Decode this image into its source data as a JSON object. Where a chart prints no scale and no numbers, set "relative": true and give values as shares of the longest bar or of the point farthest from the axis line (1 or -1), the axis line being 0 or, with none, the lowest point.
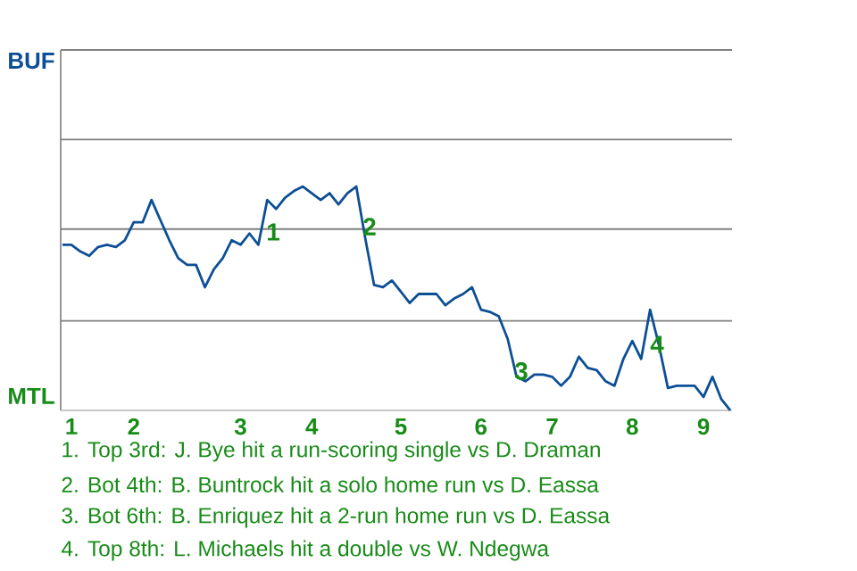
{
  "chart_data": {
    "type": "line",
    "relative": true,
    "categories": [
      null,
      "1",
      null,
      null,
      null,
      null,
      null,
      null,
      "2",
      null,
      null,
      null,
      null,
      null,
      null,
      null,
      null,
      null,
      null,
      null,
      "3",
      null,
      null,
      null,
      null,
      null,
      null,
      null,
      "4",
      null,
      null,
      null,
      null,
      null,
      null,
      null,
      null,
      null,
      "5",
      null,
      null,
      null,
      null,
      null,
      null,
      null,
      null,
      "6",
      null,
      null,
      null,
      null,
      null,
      null,
      null,
      "7",
      null,
      null,
      null,
      null,
      null,
      null,
      null,
      null,
      "8",
      null,
      null,
      null,
      null,
      null,
      null,
      null,
      "9",
      null,
      null,
      null
    ],
    "series": [
      {
        "color": "#0d4f96",
        "values": [
          0.74,
          0.74,
          0.71,
          0.69,
          0.73,
          0.74,
          0.73,
          0.76,
          0.84,
          0.84,
          0.94,
          0.85,
          0.76,
          0.68,
          0.65,
          0.65,
          0.55,
          0.63,
          0.68,
          0.76,
          0.74,
          0.79,
          0.74,
          0.94,
          0.9,
          0.95,
          0.98,
          1.0,
          0.97,
          0.94,
          0.97,
          0.92,
          0.97,
          1.0,
          0.77,
          0.56,
          0.55,
          0.58,
          0.53,
          0.48,
          0.52,
          0.52,
          0.52,
          0.47,
          0.5,
          0.52,
          0.55,
          0.45,
          0.44,
          0.42,
          0.32,
          0.15,
          0.13,
          0.16,
          0.16,
          0.15,
          0.11,
          0.15,
          0.24,
          0.19,
          0.18,
          0.13,
          0.11,
          0.23,
          0.31,
          0.23,
          0.45,
          0.29,
          0.1,
          0.11,
          0.11,
          0.11,
          0.06,
          0.15,
          0.05,
          0
        ]
      }
    ],
    "ref_lines": [
      {
        "axis": "y",
        "value": 0.4,
        "color": "#808080"
      },
      {
        "axis": "y",
        "value": 0.81,
        "color": "#808080"
      },
      {
        "axis": "y",
        "value": 1.21,
        "color": "#808080"
      },
      {
        "axis": "y",
        "value": 1.61,
        "color": "#808080"
      }
    ],
    "annotations": [
      "BUF",
      "MTL",
      "1",
      "2",
      "3",
      "4",
      "1. Top 3rd: J. Bye hit a run-scoring single vs D. Draman",
      "2. Bot 4th: B. Buntrock hit a solo home run vs D. Eassa",
      "3. Bot 6th: B. Enriquez hit a 2-run home run vs D. Eassa",
      "4. Top 8th: L. Michaels hit a double vs W. Ndegwa"
    ]
  }
}
